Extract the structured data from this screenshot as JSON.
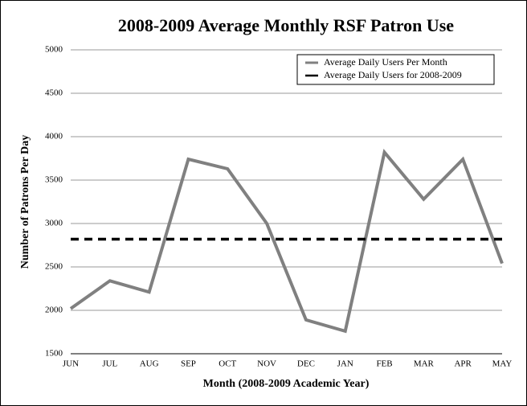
{
  "chart_data": {
    "type": "line",
    "title": "2008-2009 Average Monthly RSF Patron Use",
    "x_label": "Month (2008-2009 Academic Year)",
    "y_label": "Number of Patrons Per Day",
    "categories": [
      "JUN",
      "JUL",
      "AUG",
      "SEP",
      "OCT",
      "NOV",
      "DEC",
      "JAN",
      "FEB",
      "MAR",
      "APR",
      "MAY"
    ],
    "series": [
      {
        "name": "Average Daily Users Per Month",
        "color": "#808080",
        "values": [
          2020,
          2340,
          2210,
          3740,
          3630,
          3000,
          1890,
          1760,
          3820,
          3280,
          3740,
          2540
        ]
      },
      {
        "name": "Average Daily Users for 2008-2009",
        "color": "#000000",
        "value": 2820
      }
    ],
    "ylim": [
      1500,
      5000
    ],
    "yticks": [
      1500,
      2000,
      2500,
      3000,
      3500,
      4000,
      4500,
      5000
    ],
    "grid": true,
    "legend": "top-right"
  }
}
